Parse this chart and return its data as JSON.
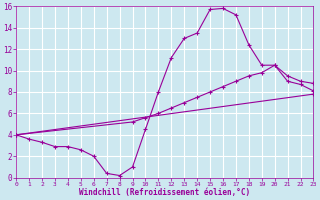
{
  "background_color": "#cde8f0",
  "grid_color": "#ffffff",
  "line_color": "#990099",
  "marker": "+",
  "xlabel": "Windchill (Refroidissement éolien,°C)",
  "xlabel_color": "#990099",
  "tick_color": "#990099",
  "xlim": [
    0,
    23
  ],
  "ylim": [
    0,
    16
  ],
  "xticks": [
    0,
    1,
    2,
    3,
    4,
    5,
    6,
    7,
    8,
    9,
    10,
    11,
    12,
    13,
    14,
    15,
    16,
    17,
    18,
    19,
    20,
    21,
    22,
    23
  ],
  "yticks": [
    0,
    2,
    4,
    6,
    8,
    10,
    12,
    14,
    16
  ],
  "curve1_x": [
    0,
    1,
    2,
    3,
    4,
    5,
    6,
    7,
    8,
    9,
    10,
    11,
    12,
    13,
    14,
    15,
    16,
    17,
    18,
    19,
    20,
    21,
    22,
    23
  ],
  "curve1_y": [
    4.0,
    3.6,
    3.3,
    2.9,
    2.9,
    2.6,
    2.0,
    0.4,
    0.2,
    1.0,
    4.5,
    8.0,
    11.2,
    13.0,
    13.5,
    15.7,
    15.8,
    15.2,
    12.4,
    10.5,
    10.5,
    9.0,
    8.7,
    8.1
  ],
  "curve2_x": [
    0,
    9,
    10,
    11,
    12,
    13,
    14,
    15,
    16,
    17,
    18,
    19,
    20,
    21,
    22,
    23
  ],
  "curve2_y": [
    4.0,
    5.2,
    5.6,
    6.0,
    6.5,
    7.0,
    7.5,
    8.0,
    8.5,
    9.0,
    9.5,
    9.8,
    10.5,
    9.5,
    9.0,
    8.8
  ],
  "curve3_x": [
    0,
    23
  ],
  "curve3_y": [
    4.0,
    7.8
  ]
}
